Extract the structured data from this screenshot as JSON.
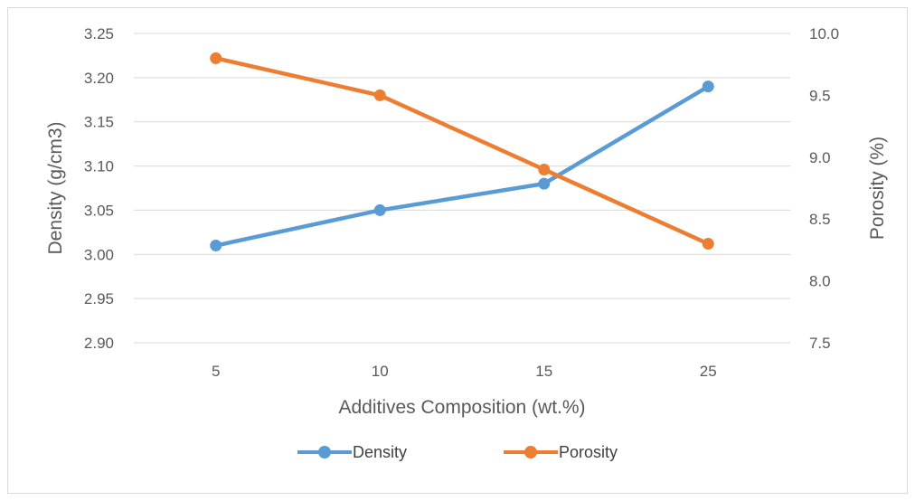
{
  "chart_data": {
    "type": "line",
    "categories": [
      "5",
      "10",
      "15",
      "25"
    ],
    "xlabel": "Additives Composition (wt.%)",
    "ylabel": "Density (g/cm3)",
    "y2label": "Porosity (%)",
    "ylim": [
      2.9,
      3.25
    ],
    "yticks": [
      "2.90",
      "2.95",
      "3.00",
      "3.05",
      "3.10",
      "3.15",
      "3.20",
      "3.25"
    ],
    "y2lim": [
      7.5,
      10.0
    ],
    "y2ticks": [
      "7.5",
      "8.0",
      "8.5",
      "9.0",
      "9.5",
      "10.0"
    ],
    "grid": true,
    "legend_position": "bottom",
    "series": [
      {
        "name": "Density",
        "axis": "left",
        "color": "#5b9bd5",
        "values": [
          3.01,
          3.05,
          3.08,
          3.19
        ]
      },
      {
        "name": "Porosity",
        "axis": "right",
        "color": "#ed7d31",
        "values": [
          9.8,
          9.5,
          8.9,
          8.3
        ]
      }
    ]
  }
}
